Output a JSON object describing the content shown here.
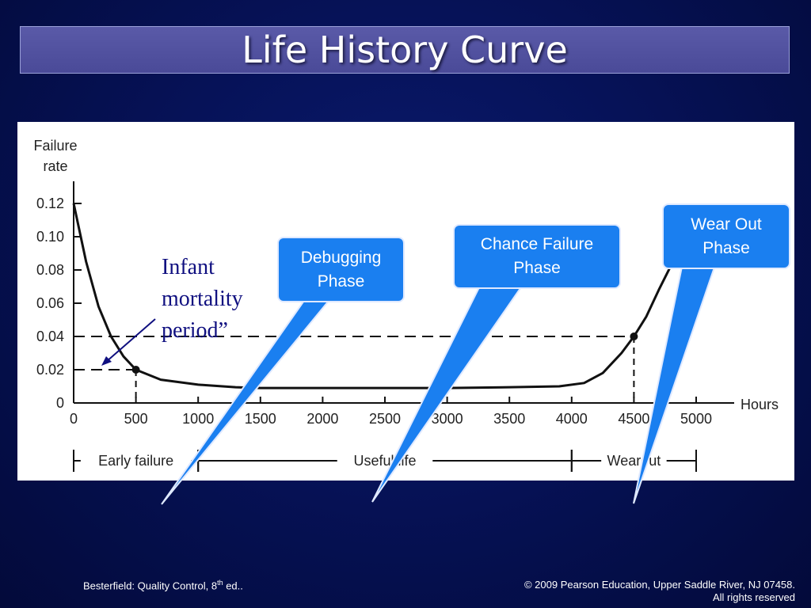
{
  "slide": {
    "title": "Life History Curve",
    "footer_left_prefix": "Besterfield: Quality Control, 8",
    "footer_left_sup": "th",
    "footer_left_suffix": " ed..",
    "footer_right_line1": "© 2009 Pearson Education, Upper Saddle River, NJ 07458.",
    "footer_right_line2": "All rights reserved"
  },
  "callouts": {
    "debugging": "Debugging\nPhase",
    "chance": "Chance Failure\nPhase",
    "wearout": "Wear Out\nPhase",
    "infant": "Infant\nmortality\nperiod”"
  },
  "chart_data": {
    "type": "line",
    "ylabel": "Failure\nrate",
    "xlabel": "Hours",
    "xlim": [
      0,
      5000
    ],
    "ylim": [
      0,
      0.12
    ],
    "x_ticks": [
      0,
      500,
      1000,
      1500,
      2000,
      2500,
      3000,
      3500,
      4000,
      4500,
      5000
    ],
    "x_tick_labels": [
      "0",
      "500",
      "1000",
      "1500",
      "2000",
      "2500",
      "3000",
      "3500",
      "4000",
      "4500",
      "5000"
    ],
    "y_ticks": [
      0,
      0.02,
      0.04,
      0.06,
      0.08,
      0.1,
      0.12
    ],
    "y_tick_labels": [
      "0",
      "0.02",
      "0.04",
      "0.06",
      "0.08",
      "0.10",
      "0.12"
    ],
    "series": [
      {
        "x": [
          0,
          100,
          200,
          300,
          400,
          500,
          700,
          1000,
          1300,
          1500,
          2000,
          2500,
          3000,
          3500,
          3900,
          4100,
          4250,
          4400,
          4500,
          4600,
          4700,
          4800,
          4900
        ],
        "y": [
          0.12,
          0.085,
          0.058,
          0.04,
          0.028,
          0.02,
          0.014,
          0.011,
          0.0095,
          0.009,
          0.009,
          0.009,
          0.009,
          0.0095,
          0.01,
          0.012,
          0.018,
          0.03,
          0.04,
          0.052,
          0.068,
          0.083,
          0.098
        ]
      }
    ],
    "markers": [
      {
        "x": 500,
        "y": 0.02
      },
      {
        "x": 4500,
        "y": 0.04
      }
    ],
    "reference_lines": [
      {
        "y": 0.04,
        "x_from": 0,
        "x_to": 4500
      },
      {
        "y": 0.02,
        "x_from": 0,
        "x_to": 500
      }
    ],
    "phases": [
      {
        "label": "Early failure",
        "x_from": 0,
        "x_to": 1000
      },
      {
        "label": "Useful life",
        "x_from": 1000,
        "x_to": 4000
      },
      {
        "label": "Wearout",
        "x_from": 4000,
        "x_to": 5000
      }
    ]
  }
}
